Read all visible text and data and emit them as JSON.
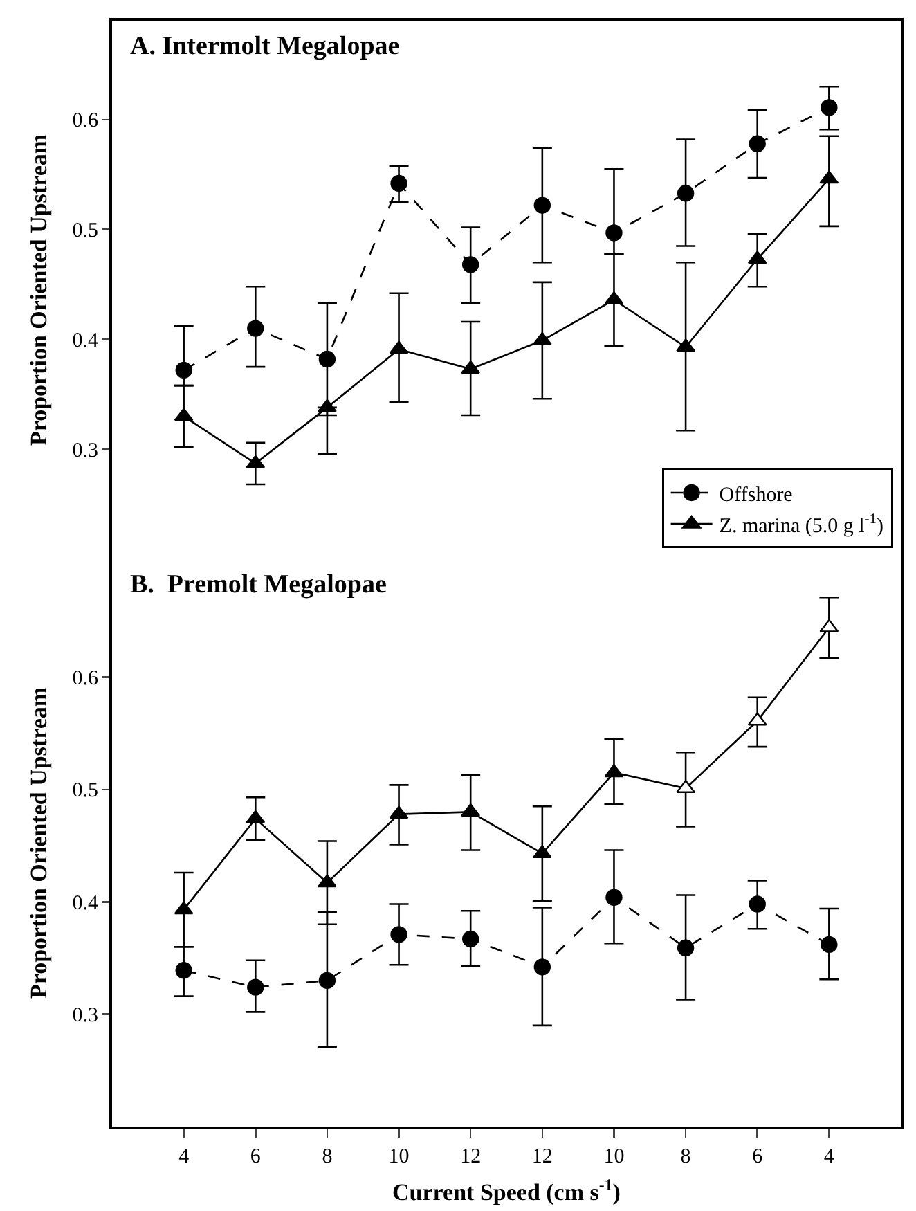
{
  "chart_data": [
    {
      "type": "line",
      "title": "A. Intermolt Megalopae",
      "ylabel": "Proportion Oriented Upstream",
      "categories": [
        null,
        null,
        null,
        null,
        null,
        null,
        null,
        null,
        null,
        null
      ],
      "ylim": [
        0.2,
        0.69
      ],
      "yticks": [
        0.3,
        0.4,
        0.5,
        0.6
      ],
      "grid": false,
      "legend": "bottom right",
      "tick_labels": "y",
      "series": [
        {
          "name": "Offshore",
          "color": "#000000",
          "marker": "circle",
          "line_style": "dashed",
          "values": [
            0.372,
            0.41,
            0.382,
            0.542,
            0.468,
            0.522,
            0.497,
            0.533,
            0.578,
            0.611
          ],
          "errors": [
            [
              0.358,
              0.412
            ],
            [
              0.375,
              0.448
            ],
            [
              0.331,
              0.433
            ],
            [
              0.525,
              0.558
            ],
            [
              0.433,
              0.502
            ],
            [
              0.47,
              0.574
            ],
            [
              0.478,
              0.555
            ],
            [
              0.485,
              0.582
            ],
            [
              0.547,
              0.609
            ],
            [
              0.591,
              0.63
            ]
          ]
        },
        {
          "name": "Z. marina (5.0 g l$^{-1}$)",
          "color": "#000000",
          "marker": "triangle",
          "line_style": "solid",
          "values": [
            0.33,
            0.287,
            0.338,
            0.391,
            0.373,
            0.399,
            0.436,
            0.393,
            0.473,
            0.546
          ],
          "errors": [
            [
              0.302,
              0.358
            ],
            [
              0.268,
              0.306
            ],
            [
              0.296,
              0.338
            ],
            [
              0.343,
              0.442
            ],
            [
              0.331,
              0.416
            ],
            [
              0.346,
              0.452
            ],
            [
              0.394,
              0.478
            ],
            [
              0.317,
              0.47
            ],
            [
              0.448,
              0.496
            ],
            [
              0.503,
              0.585
            ]
          ]
        }
      ]
    },
    {
      "type": "line",
      "title": "B.  Premolt Megalopae",
      "xlabel": "Current Speed (cm s$^{-1}$)",
      "ylabel": "Proportion Oriented Upstream",
      "categories": [
        "4",
        "6",
        "8",
        "10",
        "12",
        "12",
        "10",
        "8",
        "6",
        "4"
      ],
      "ylim": [
        0.2,
        0.705
      ],
      "yticks": [
        0.3,
        0.4,
        0.5,
        0.6
      ],
      "grid": false,
      "legend": false,
      "series": [
        {
          "color": "#000000",
          "marker": "circle",
          "line_style": "dashed",
          "values": [
            0.339,
            0.324,
            0.33,
            0.371,
            0.367,
            0.342,
            0.404,
            0.359,
            0.398,
            0.362
          ],
          "errors": [
            [
              0.316,
              0.36
            ],
            [
              0.302,
              0.348
            ],
            [
              0.271,
              0.391
            ],
            [
              0.344,
              0.398
            ],
            [
              0.343,
              0.392
            ],
            [
              0.29,
              0.395
            ],
            [
              0.363,
              0.446
            ],
            [
              0.313,
              0.406
            ],
            [
              0.376,
              0.419
            ],
            [
              0.331,
              0.394
            ]
          ]
        },
        {
          "color": "#000000",
          "colors": [
            "#000000",
            "#000000",
            "#000000",
            "#000000",
            "#000000",
            "#000000",
            "#000000",
            "#ffffff",
            "#ffffff",
            "#ffffff"
          ],
          "marker": "triangle",
          "line_style": "solid",
          "values": [
            0.393,
            0.474,
            0.417,
            0.478,
            0.48,
            0.443,
            0.515,
            0.501,
            0.561,
            0.644
          ],
          "errors": [
            [
              0.36,
              0.426
            ],
            [
              0.455,
              0.493
            ],
            [
              0.38,
              0.454
            ],
            [
              0.451,
              0.504
            ],
            [
              0.446,
              0.513
            ],
            [
              0.401,
              0.485
            ],
            [
              0.487,
              0.545
            ],
            [
              0.467,
              0.533
            ],
            [
              0.538,
              0.582
            ],
            [
              0.617,
              0.671
            ]
          ]
        }
      ]
    }
  ]
}
